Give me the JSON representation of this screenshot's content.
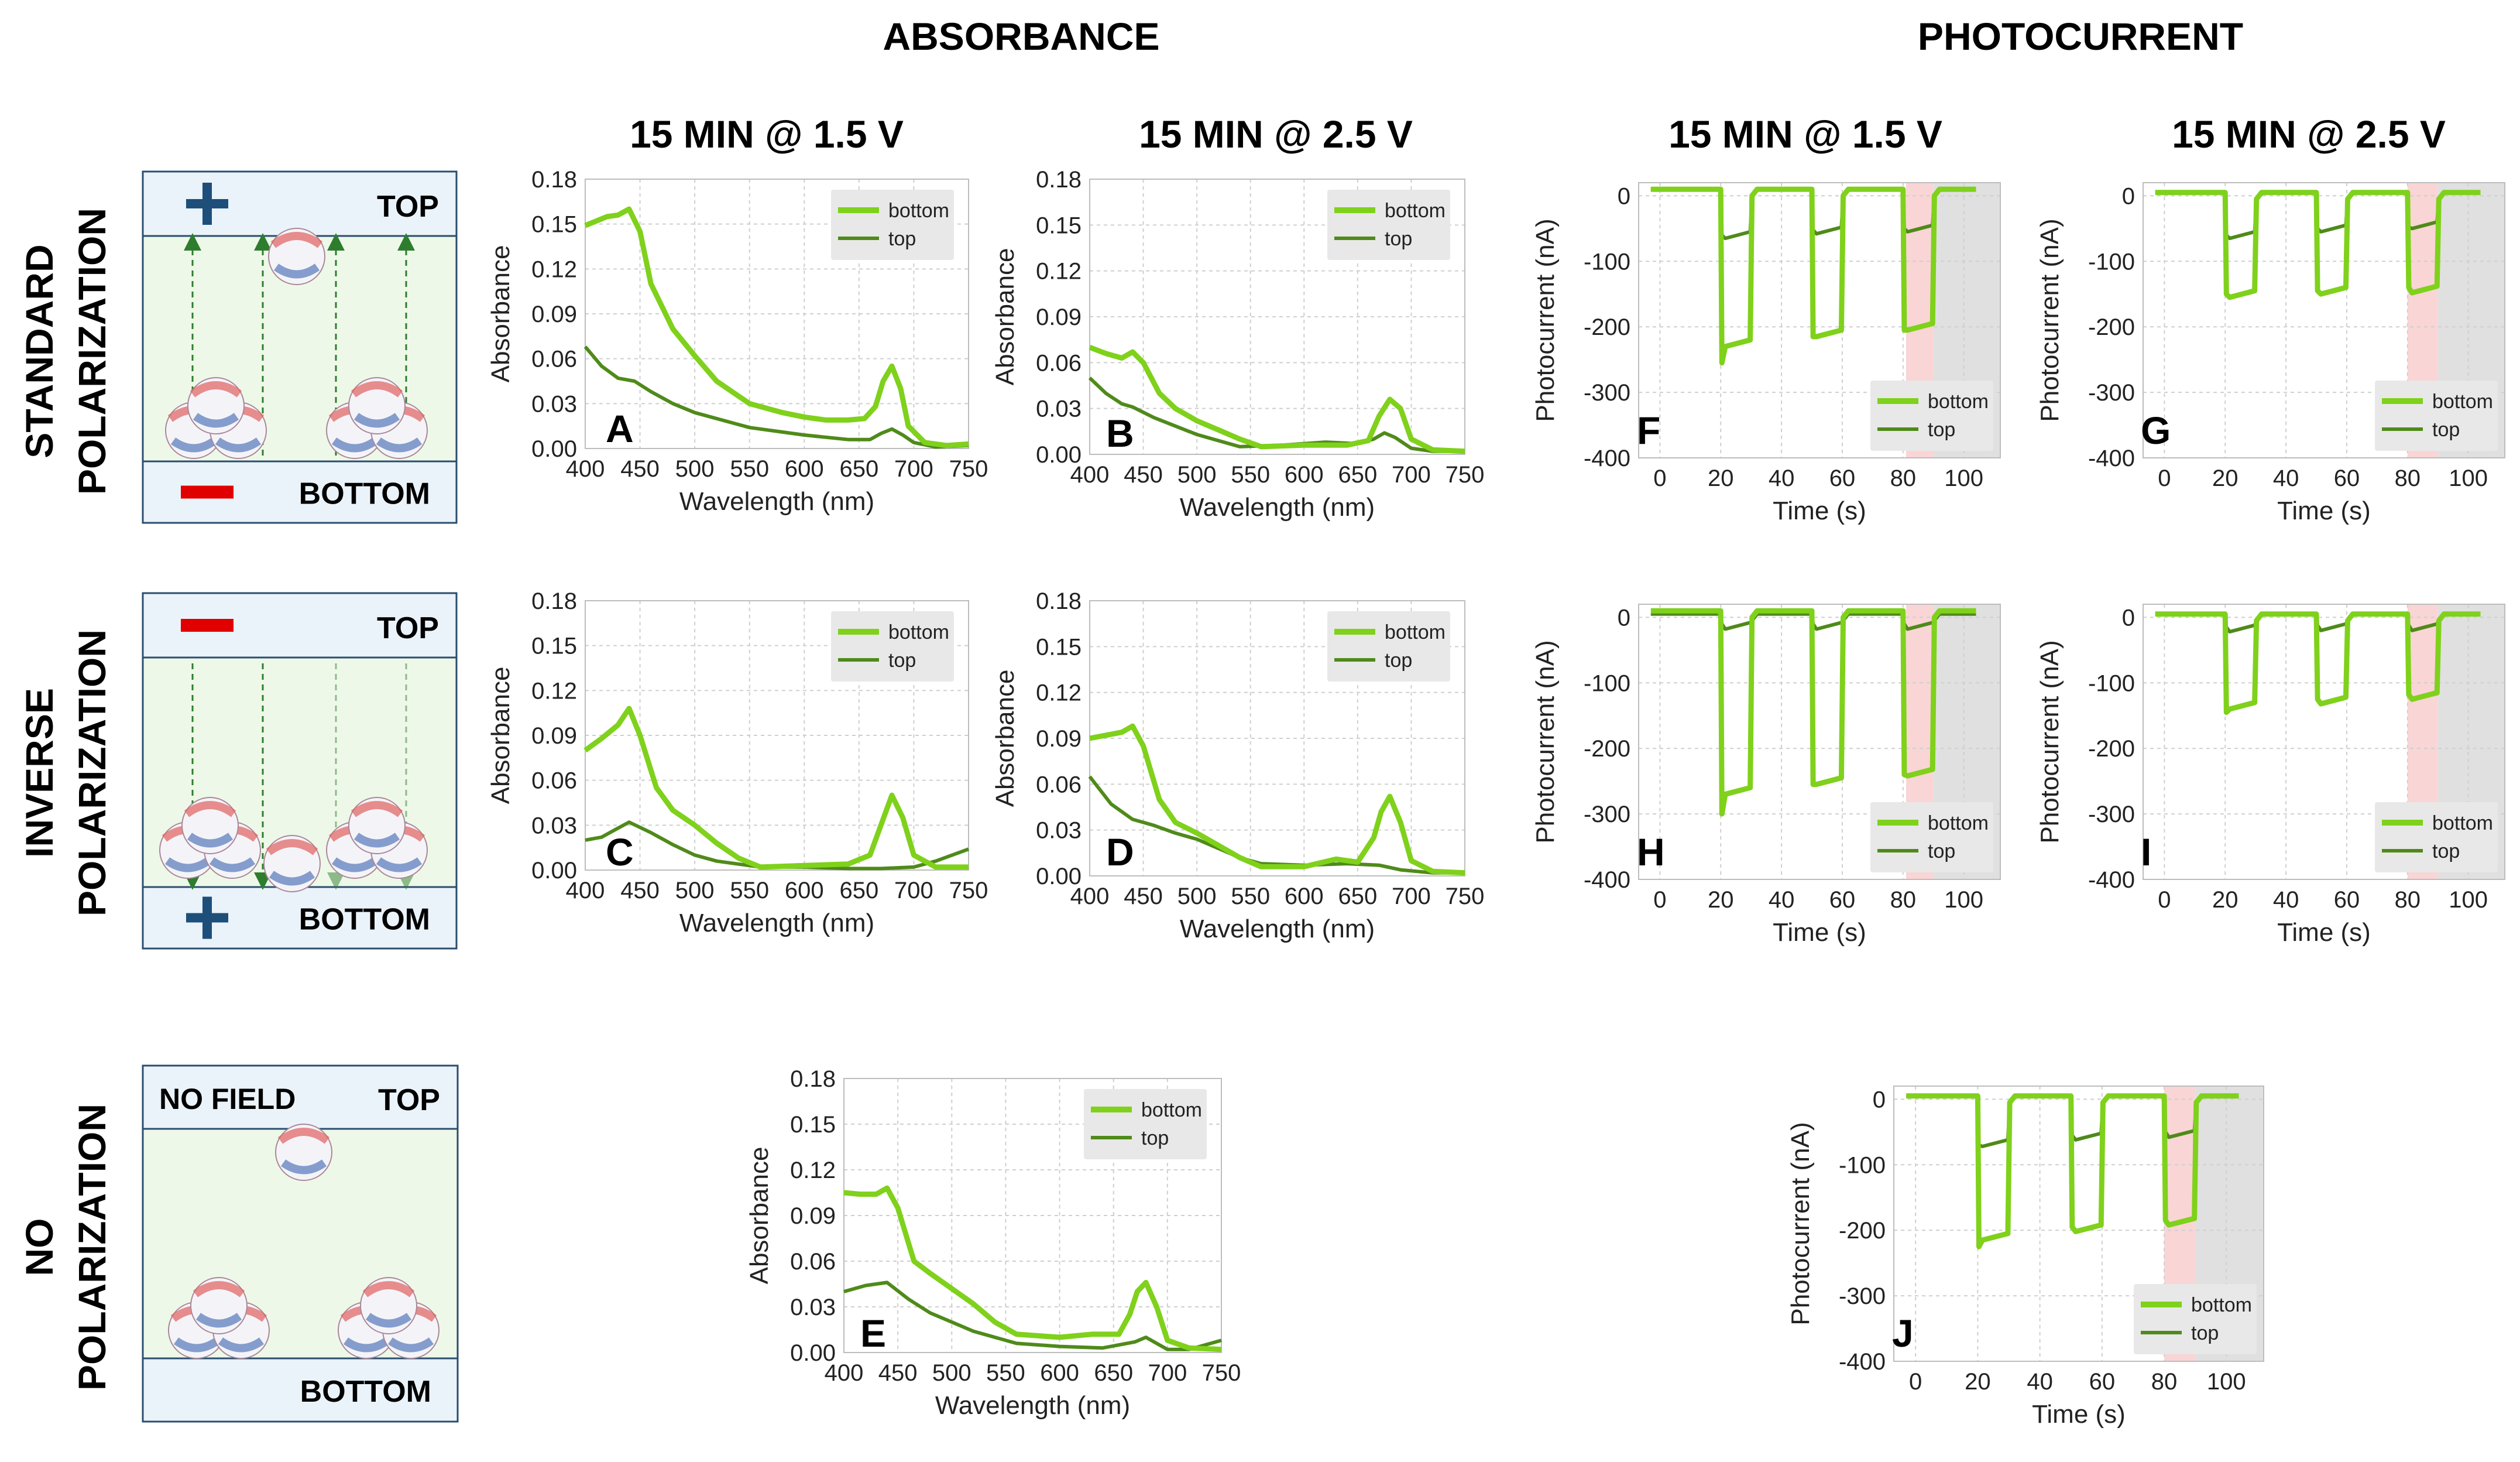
{
  "headers": {
    "absorbance": "ABSORBANCE",
    "photocurrent": "PHOTOCURRENT",
    "col_1_5": "15 MIN @ 1.5 V",
    "col_2_5": "15 MIN @ 2.5 V"
  },
  "rows": [
    {
      "line1": "STANDARD",
      "line2": "POLARIZATION"
    },
    {
      "line1": "INVERSE",
      "line2": "POLARIZATION"
    },
    {
      "line1": "NO",
      "line2": "POLARIZATION"
    }
  ],
  "schematics": [
    {
      "top_sign": "+",
      "top_label": "TOP",
      "bottom_sign": "−",
      "bottom_label": "BOTTOM",
      "field_label": ""
    },
    {
      "top_sign": "−",
      "top_label": "TOP",
      "bottom_sign": "+",
      "bottom_label": "BOTTOM",
      "field_label": ""
    },
    {
      "top_sign": "",
      "top_label": "TOP",
      "bottom_sign": "",
      "bottom_label": "BOTTOM",
      "field_label": "NO FIELD"
    }
  ],
  "colors": {
    "bottom": "#7fd11b",
    "top": "#4f8a1a",
    "panel_bg": "#eaf3fa",
    "chamber_bg": "#eef8e8",
    "minus": "#e00000",
    "plus": "#1d4f7a",
    "no_field": "#1f6b1f"
  },
  "chart_data": [
    {
      "id": "A",
      "type": "line",
      "kind": "absorbance",
      "xlabel": "Wavelength (nm)",
      "ylabel": "Absorbance",
      "xlim": [
        400,
        750
      ],
      "ylim": [
        0,
        0.18
      ],
      "xticks": [
        400,
        450,
        500,
        550,
        600,
        650,
        700,
        750
      ],
      "yticks": [
        "0.00",
        "0.03",
        "0.06",
        "0.09",
        "0.12",
        "0.15",
        "0.18"
      ],
      "legend": [
        "bottom",
        "top"
      ],
      "legend_position": "top-right",
      "series": [
        {
          "name": "bottom",
          "x": [
            400,
            410,
            420,
            430,
            440,
            450,
            460,
            480,
            500,
            520,
            550,
            580,
            600,
            620,
            640,
            655,
            665,
            672,
            680,
            688,
            695,
            710,
            730,
            750
          ],
          "y": [
            0.149,
            0.152,
            0.155,
            0.156,
            0.16,
            0.145,
            0.11,
            0.08,
            0.062,
            0.045,
            0.03,
            0.024,
            0.021,
            0.019,
            0.019,
            0.02,
            0.028,
            0.045,
            0.055,
            0.04,
            0.015,
            0.004,
            0.002,
            0.003
          ]
        },
        {
          "name": "top",
          "x": [
            400,
            415,
            430,
            445,
            460,
            480,
            500,
            550,
            600,
            640,
            660,
            670,
            680,
            690,
            700,
            720,
            750
          ],
          "y": [
            0.068,
            0.055,
            0.047,
            0.045,
            0.038,
            0.03,
            0.024,
            0.014,
            0.009,
            0.006,
            0.006,
            0.01,
            0.013,
            0.009,
            0.004,
            0.001,
            0.002
          ]
        }
      ]
    },
    {
      "id": "B",
      "type": "line",
      "kind": "absorbance",
      "xlabel": "Wavelength (nm)",
      "ylabel": "Absorbance",
      "xlim": [
        400,
        750
      ],
      "ylim": [
        0,
        0.18
      ],
      "xticks": [
        400,
        450,
        500,
        550,
        600,
        650,
        700,
        750
      ],
      "yticks": [
        "0.00",
        "0.03",
        "0.06",
        "0.09",
        "0.12",
        "0.15",
        "0.18"
      ],
      "legend": [
        "bottom",
        "top"
      ],
      "legend_position": "top-right",
      "series": [
        {
          "name": "bottom",
          "x": [
            400,
            415,
            430,
            440,
            450,
            465,
            480,
            500,
            520,
            540,
            560,
            600,
            640,
            660,
            670,
            680,
            690,
            700,
            720,
            750
          ],
          "y": [
            0.07,
            0.066,
            0.063,
            0.067,
            0.06,
            0.04,
            0.03,
            0.022,
            0.016,
            0.01,
            0.005,
            0.006,
            0.006,
            0.009,
            0.025,
            0.036,
            0.03,
            0.01,
            0.003,
            0.002
          ]
        },
        {
          "name": "top",
          "x": [
            400,
            415,
            430,
            440,
            460,
            500,
            540,
            580,
            620,
            650,
            665,
            675,
            685,
            700,
            720,
            750
          ],
          "y": [
            0.05,
            0.04,
            0.033,
            0.031,
            0.024,
            0.013,
            0.005,
            0.006,
            0.008,
            0.007,
            0.01,
            0.014,
            0.011,
            0.004,
            0.002,
            0.002
          ]
        }
      ]
    },
    {
      "id": "C",
      "type": "line",
      "kind": "absorbance",
      "xlabel": "Wavelength (nm)",
      "ylabel": "Absorbance",
      "xlim": [
        400,
        750
      ],
      "ylim": [
        0,
        0.18
      ],
      "xticks": [
        400,
        450,
        500,
        550,
        600,
        650,
        700,
        750
      ],
      "yticks": [
        "0.00",
        "0.03",
        "0.06",
        "0.09",
        "0.12",
        "0.15",
        "0.18"
      ],
      "legend": [
        "bottom",
        "top"
      ],
      "legend_position": "top-right",
      "series": [
        {
          "name": "bottom",
          "x": [
            400,
            415,
            430,
            440,
            450,
            465,
            480,
            500,
            520,
            540,
            560,
            600,
            640,
            660,
            670,
            680,
            690,
            700,
            720,
            750
          ],
          "y": [
            0.08,
            0.088,
            0.097,
            0.108,
            0.09,
            0.055,
            0.04,
            0.03,
            0.018,
            0.008,
            0.002,
            0.003,
            0.004,
            0.01,
            0.03,
            0.05,
            0.035,
            0.01,
            0.002,
            0.002
          ]
        },
        {
          "name": "top",
          "x": [
            400,
            415,
            430,
            440,
            460,
            480,
            500,
            520,
            540,
            560,
            600,
            640,
            670,
            700,
            720,
            750
          ],
          "y": [
            0.02,
            0.022,
            0.028,
            0.032,
            0.025,
            0.017,
            0.01,
            0.006,
            0.004,
            0.002,
            0.002,
            0.001,
            0.001,
            0.002,
            0.006,
            0.014
          ]
        }
      ]
    },
    {
      "id": "D",
      "type": "line",
      "kind": "absorbance",
      "xlabel": "Wavelength (nm)",
      "ylabel": "Absorbance",
      "xlim": [
        400,
        750
      ],
      "ylim": [
        0,
        0.18
      ],
      "xticks": [
        400,
        450,
        500,
        550,
        600,
        650,
        700,
        750
      ],
      "yticks": [
        "0.00",
        "0.03",
        "0.06",
        "0.09",
        "0.12",
        "0.15",
        "0.18"
      ],
      "legend": [
        "bottom",
        "top"
      ],
      "legend_position": "top-right",
      "series": [
        {
          "name": "bottom",
          "x": [
            400,
            415,
            430,
            440,
            450,
            465,
            480,
            500,
            520,
            540,
            560,
            600,
            630,
            650,
            665,
            672,
            680,
            690,
            700,
            720,
            750
          ],
          "y": [
            0.09,
            0.092,
            0.094,
            0.098,
            0.085,
            0.05,
            0.035,
            0.028,
            0.02,
            0.012,
            0.006,
            0.006,
            0.011,
            0.009,
            0.025,
            0.042,
            0.052,
            0.035,
            0.01,
            0.003,
            0.002
          ]
        },
        {
          "name": "top",
          "x": [
            400,
            420,
            440,
            460,
            480,
            500,
            520,
            540,
            560,
            600,
            640,
            670,
            690,
            720,
            750
          ],
          "y": [
            0.065,
            0.047,
            0.037,
            0.033,
            0.028,
            0.024,
            0.018,
            0.012,
            0.008,
            0.007,
            0.008,
            0.007,
            0.004,
            0.002,
            0.002
          ]
        }
      ]
    },
    {
      "id": "E",
      "type": "line",
      "kind": "absorbance",
      "xlabel": "Wavelength (nm)",
      "ylabel": "Absorbance",
      "xlim": [
        400,
        750
      ],
      "ylim": [
        0,
        0.18
      ],
      "xticks": [
        400,
        450,
        500,
        550,
        600,
        650,
        700,
        750
      ],
      "yticks": [
        "0.00",
        "0.03",
        "0.06",
        "0.09",
        "0.12",
        "0.15",
        "0.18"
      ],
      "legend": [
        "bottom",
        "top"
      ],
      "legend_position": "top-right",
      "series": [
        {
          "name": "bottom",
          "x": [
            400,
            415,
            430,
            440,
            450,
            465,
            480,
            500,
            520,
            540,
            560,
            600,
            630,
            655,
            665,
            672,
            680,
            690,
            700,
            720,
            750
          ],
          "y": [
            0.105,
            0.104,
            0.104,
            0.108,
            0.095,
            0.06,
            0.052,
            0.042,
            0.032,
            0.02,
            0.012,
            0.01,
            0.012,
            0.012,
            0.025,
            0.04,
            0.046,
            0.03,
            0.008,
            0.003,
            0.002
          ]
        },
        {
          "name": "top",
          "x": [
            400,
            420,
            440,
            460,
            480,
            500,
            520,
            540,
            560,
            600,
            640,
            670,
            680,
            690,
            700,
            720,
            750
          ],
          "y": [
            0.04,
            0.044,
            0.046,
            0.035,
            0.026,
            0.02,
            0.014,
            0.01,
            0.006,
            0.004,
            0.003,
            0.007,
            0.01,
            0.006,
            0.002,
            0.002,
            0.008
          ]
        }
      ]
    },
    {
      "id": "F",
      "type": "line",
      "kind": "photocurrent",
      "xlabel": "Time (s)",
      "ylabel": "Photocurrent (nA)",
      "xlim": [
        -7,
        112
      ],
      "ylim": [
        -400,
        20
      ],
      "xticks": [
        0,
        20,
        40,
        60,
        80,
        100
      ],
      "yticks": [
        "0",
        "-100",
        "-200",
        "-300",
        "-400"
      ],
      "legend": [
        "bottom",
        "top"
      ],
      "legend_position": "bottom-right",
      "shaded": [
        [
          81,
          90,
          "red"
        ],
        [
          90,
          112,
          "gray"
        ]
      ],
      "series": [
        {
          "name": "bottom",
          "on": [
            20,
            50,
            80
          ],
          "off": [
            30,
            60,
            90
          ],
          "baseline": 10,
          "peak": [
            -255,
            -215,
            -205
          ],
          "plateau": [
            -220,
            -205,
            -195
          ],
          "end": 104
        },
        {
          "name": "top",
          "on": [
            20,
            50,
            80
          ],
          "off": [
            30,
            60,
            90
          ],
          "baseline": 10,
          "peak": [
            -60,
            -52,
            -50
          ],
          "plateau": [
            -55,
            -48,
            -45
          ],
          "end": 104
        }
      ]
    },
    {
      "id": "G",
      "type": "line",
      "kind": "photocurrent",
      "xlabel": "Time (s)",
      "ylabel": "Photocurrent (nA)",
      "xlim": [
        -7,
        112
      ],
      "ylim": [
        -400,
        20
      ],
      "xticks": [
        0,
        20,
        40,
        60,
        80,
        100
      ],
      "yticks": [
        "0",
        "-100",
        "-200",
        "-300",
        "-400"
      ],
      "legend": [
        "bottom",
        "top"
      ],
      "legend_position": "bottom-right",
      "shaded": [
        [
          80,
          90,
          "red"
        ],
        [
          90,
          112,
          "gray"
        ]
      ],
      "series": [
        {
          "name": "bottom",
          "on": [
            20,
            50,
            80
          ],
          "off": [
            30,
            60,
            90
          ],
          "baseline": 5,
          "peak": [
            -150,
            -145,
            -140
          ],
          "plateau": [
            -145,
            -140,
            -138
          ],
          "end": 104
        },
        {
          "name": "top",
          "on": [
            20,
            50,
            80
          ],
          "off": [
            30,
            60,
            90
          ],
          "baseline": 5,
          "peak": [
            -60,
            -50,
            -48
          ],
          "plateau": [
            -55,
            -45,
            -40
          ],
          "end": 104
        }
      ]
    },
    {
      "id": "H",
      "type": "line",
      "kind": "photocurrent",
      "xlabel": "Time (s)",
      "ylabel": "Photocurrent (nA)",
      "xlim": [
        -7,
        112
      ],
      "ylim": [
        -400,
        20
      ],
      "xticks": [
        0,
        20,
        40,
        60,
        80,
        100
      ],
      "yticks": [
        "0",
        "-100",
        "-200",
        "-300",
        "-400"
      ],
      "legend": [
        "bottom",
        "top"
      ],
      "legend_position": "bottom-right",
      "shaded": [
        [
          81,
          90,
          "red"
        ],
        [
          90,
          112,
          "gray"
        ]
      ],
      "series": [
        {
          "name": "bottom",
          "on": [
            20,
            50,
            80
          ],
          "off": [
            30,
            60,
            90
          ],
          "baseline": 10,
          "peak": [
            -300,
            -255,
            -240
          ],
          "plateau": [
            -260,
            -245,
            -232
          ],
          "end": 104
        },
        {
          "name": "top",
          "on": [
            20,
            50,
            80
          ],
          "off": [
            30,
            60,
            90
          ],
          "baseline": 5,
          "peak": [
            -10,
            -10,
            -10
          ],
          "plateau": [
            -8,
            -8,
            -8
          ],
          "end": 104
        }
      ]
    },
    {
      "id": "I",
      "type": "line",
      "kind": "photocurrent",
      "xlabel": "Time (s)",
      "ylabel": "Photocurrent (nA)",
      "xlim": [
        -7,
        112
      ],
      "ylim": [
        -400,
        20
      ],
      "xticks": [
        0,
        20,
        40,
        60,
        80,
        100
      ],
      "yticks": [
        "0",
        "-100",
        "-200",
        "-300",
        "-400"
      ],
      "legend": [
        "bottom",
        "top"
      ],
      "legend_position": "bottom-right",
      "shaded": [
        [
          80,
          90,
          "red"
        ],
        [
          90,
          112,
          "gray"
        ]
      ],
      "series": [
        {
          "name": "bottom",
          "on": [
            20,
            50,
            80
          ],
          "off": [
            30,
            60,
            90
          ],
          "baseline": 5,
          "peak": [
            -145,
            -125,
            -118
          ],
          "plateau": [
            -130,
            -122,
            -115
          ],
          "end": 104
        },
        {
          "name": "top",
          "on": [
            20,
            50,
            80
          ],
          "off": [
            30,
            60,
            90
          ],
          "baseline": 5,
          "peak": [
            -15,
            -12,
            -12
          ],
          "plateau": [
            -12,
            -10,
            -10
          ],
          "end": 104
        }
      ]
    },
    {
      "id": "J",
      "type": "line",
      "kind": "photocurrent",
      "xlabel": "Time (s)",
      "ylabel": "Photocurrent (nA)",
      "xlim": [
        -7,
        112
      ],
      "ylim": [
        -400,
        20
      ],
      "xticks": [
        0,
        20,
        40,
        60,
        80,
        100
      ],
      "yticks": [
        "0",
        "-100",
        "-200",
        "-300",
        "-400"
      ],
      "legend": [
        "bottom",
        "top"
      ],
      "legend_position": "bottom-right",
      "shaded": [
        [
          80,
          90,
          "red"
        ],
        [
          90,
          112,
          "gray"
        ]
      ],
      "series": [
        {
          "name": "bottom",
          "on": [
            20,
            50,
            80
          ],
          "off": [
            30,
            60,
            90
          ],
          "baseline": 5,
          "peak": [
            -225,
            -195,
            -185
          ],
          "plateau": [
            -205,
            -192,
            -182
          ],
          "end": 104
        },
        {
          "name": "top",
          "on": [
            20,
            50,
            80
          ],
          "off": [
            30,
            60,
            90
          ],
          "baseline": 5,
          "peak": [
            -70,
            -55,
            -50
          ],
          "plateau": [
            -62,
            -52,
            -48
          ],
          "end": 104
        }
      ]
    }
  ]
}
